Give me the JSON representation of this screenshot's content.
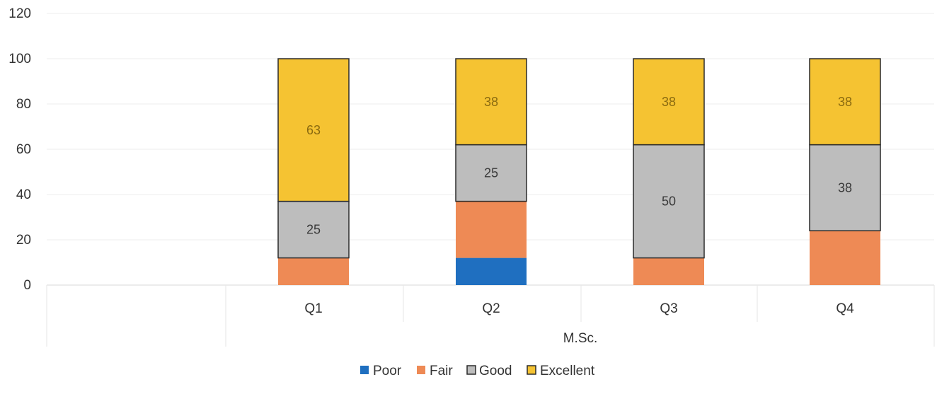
{
  "chart_data": {
    "type": "bar",
    "stacked": true,
    "group_label": "M.Sc.",
    "categories": [
      "Q1",
      "Q2",
      "Q3",
      "Q4"
    ],
    "series": [
      {
        "name": "Poor",
        "values": [
          0,
          12,
          0,
          0
        ],
        "color": "#1f6fc0",
        "labels": [
          "",
          "",
          "",
          ""
        ]
      },
      {
        "name": "Fair",
        "values": [
          12,
          25,
          12,
          24
        ],
        "color": "#ee8a55",
        "labels": [
          "",
          "",
          "",
          ""
        ]
      },
      {
        "name": "Good",
        "values": [
          25,
          25,
          50,
          38
        ],
        "color": "#bdbdbd",
        "labels": [
          "25",
          "25",
          "50",
          "38"
        ]
      },
      {
        "name": "Excellent",
        "values": [
          63,
          38,
          38,
          38
        ],
        "color": "#f5c332",
        "labels": [
          "63",
          "38",
          "38",
          "38"
        ]
      }
    ],
    "y_ticks": [
      "0",
      "20",
      "40",
      "60",
      "80",
      "100",
      "120"
    ],
    "ylim": [
      0,
      120
    ],
    "grid": true,
    "legend_position": "bottom"
  }
}
